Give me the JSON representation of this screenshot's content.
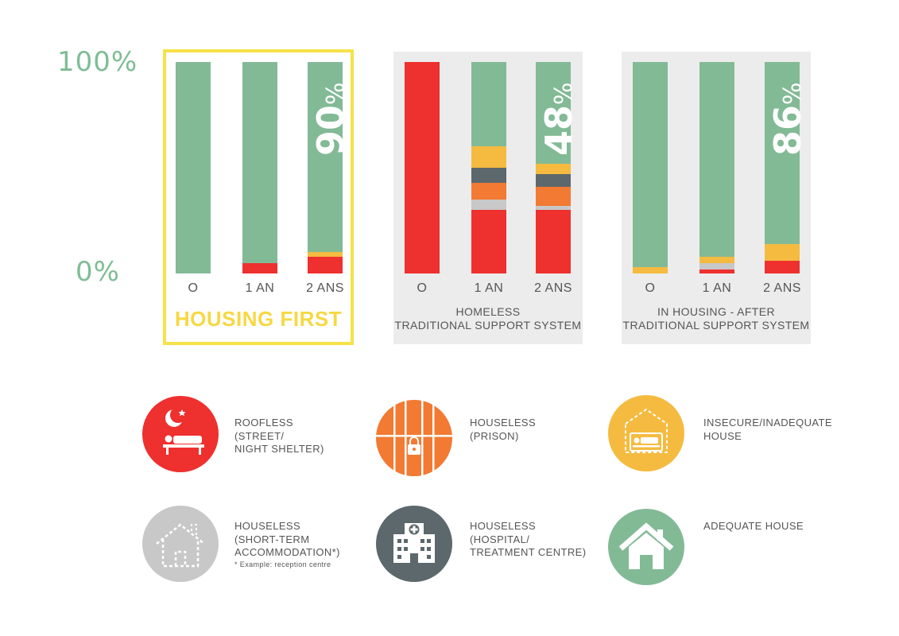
{
  "colors": {
    "adequate": "#82ba96",
    "insecure": "#f5bb40",
    "hospital": "#5c686b",
    "prison": "#f27a33",
    "short_term": "#c8c8c8",
    "roofless": "#ee302e",
    "hf_border": "#f6e24a",
    "panel_bg": "#ececec"
  },
  "axis": {
    "top": "100%",
    "bottom": "0%"
  },
  "chart_data": {
    "type": "bar",
    "stacked": true,
    "ylim": [
      0,
      100
    ],
    "y_ticks": [
      "0%",
      "100%"
    ],
    "segment_order": [
      "roofless",
      "short_term",
      "prison",
      "hospital",
      "insecure",
      "adequate"
    ],
    "groups": [
      {
        "id": "housing_first",
        "title": "HOUSING FIRST",
        "categories": [
          "O",
          "1 AN",
          "2 ANS"
        ],
        "bars": [
          {
            "roofless": 0,
            "short_term": 0,
            "prison": 0,
            "hospital": 0,
            "insecure": 0,
            "adequate": 100
          },
          {
            "roofless": 5,
            "short_term": 0,
            "prison": 0,
            "hospital": 0,
            "insecure": 0,
            "adequate": 95
          },
          {
            "roofless": 8,
            "short_term": 0,
            "prison": 0,
            "hospital": 0,
            "insecure": 2,
            "adequate": 90
          }
        ],
        "highlight_label": "90",
        "highlight_unit": "%"
      },
      {
        "id": "homeless_traditional",
        "title": "HOMELESS\nTRADITIONAL SUPPORT SYSTEM",
        "categories": [
          "O",
          "1 AN",
          "2 ANS"
        ],
        "bars": [
          {
            "roofless": 100,
            "short_term": 0,
            "prison": 0,
            "hospital": 0,
            "insecure": 0,
            "adequate": 0
          },
          {
            "roofless": 30,
            "short_term": 5,
            "prison": 8,
            "hospital": 7,
            "insecure": 10,
            "adequate": 40
          },
          {
            "roofless": 30,
            "short_term": 2,
            "prison": 9,
            "hospital": 6,
            "insecure": 5,
            "adequate": 48
          }
        ],
        "highlight_label": "48",
        "highlight_unit": "%"
      },
      {
        "id": "in_housing_traditional",
        "title": "IN HOUSING - AFTER\nTRADITIONAL SUPPORT SYSTEM",
        "categories": [
          "O",
          "1 AN",
          "2 ANS"
        ],
        "bars": [
          {
            "roofless": 0,
            "short_term": 0,
            "prison": 0,
            "hospital": 0,
            "insecure": 3,
            "adequate": 97
          },
          {
            "roofless": 2,
            "short_term": 3,
            "prison": 0,
            "hospital": 0,
            "insecure": 3,
            "adequate": 92
          },
          {
            "roofless": 6,
            "short_term": 0,
            "prison": 0,
            "hospital": 0,
            "insecure": 8,
            "adequate": 86
          }
        ],
        "highlight_label": "86",
        "highlight_unit": "%"
      }
    ]
  },
  "legend": [
    {
      "key": "roofless",
      "icon": "moon-sleeping-bench-icon",
      "lines": [
        "ROOFLESS",
        "(STREET/",
        "NIGHT SHELTER)"
      ],
      "note": ""
    },
    {
      "key": "prison",
      "icon": "prison-bars-lock-icon",
      "lines": [
        "HOUSELESS",
        "(PRISON)"
      ],
      "note": ""
    },
    {
      "key": "insecure",
      "icon": "dashed-house-bed-icon",
      "lines": [
        "INSECURE/INADEQUATE",
        "HOUSE"
      ],
      "note": ""
    },
    {
      "key": "short_term",
      "icon": "dashed-house-outline-icon",
      "lines": [
        "HOUSELESS",
        "(SHORT-TERM",
        "ACCOMMODATION*)"
      ],
      "note": "* Example: reception centre"
    },
    {
      "key": "hospital",
      "icon": "hospital-building-icon",
      "lines": [
        "HOUSELESS",
        "(HOSPITAL/",
        "TREATMENT CENTRE)"
      ],
      "note": ""
    },
    {
      "key": "adequate",
      "icon": "house-icon",
      "lines": [
        "ADEQUATE HOUSE"
      ],
      "note": ""
    }
  ]
}
